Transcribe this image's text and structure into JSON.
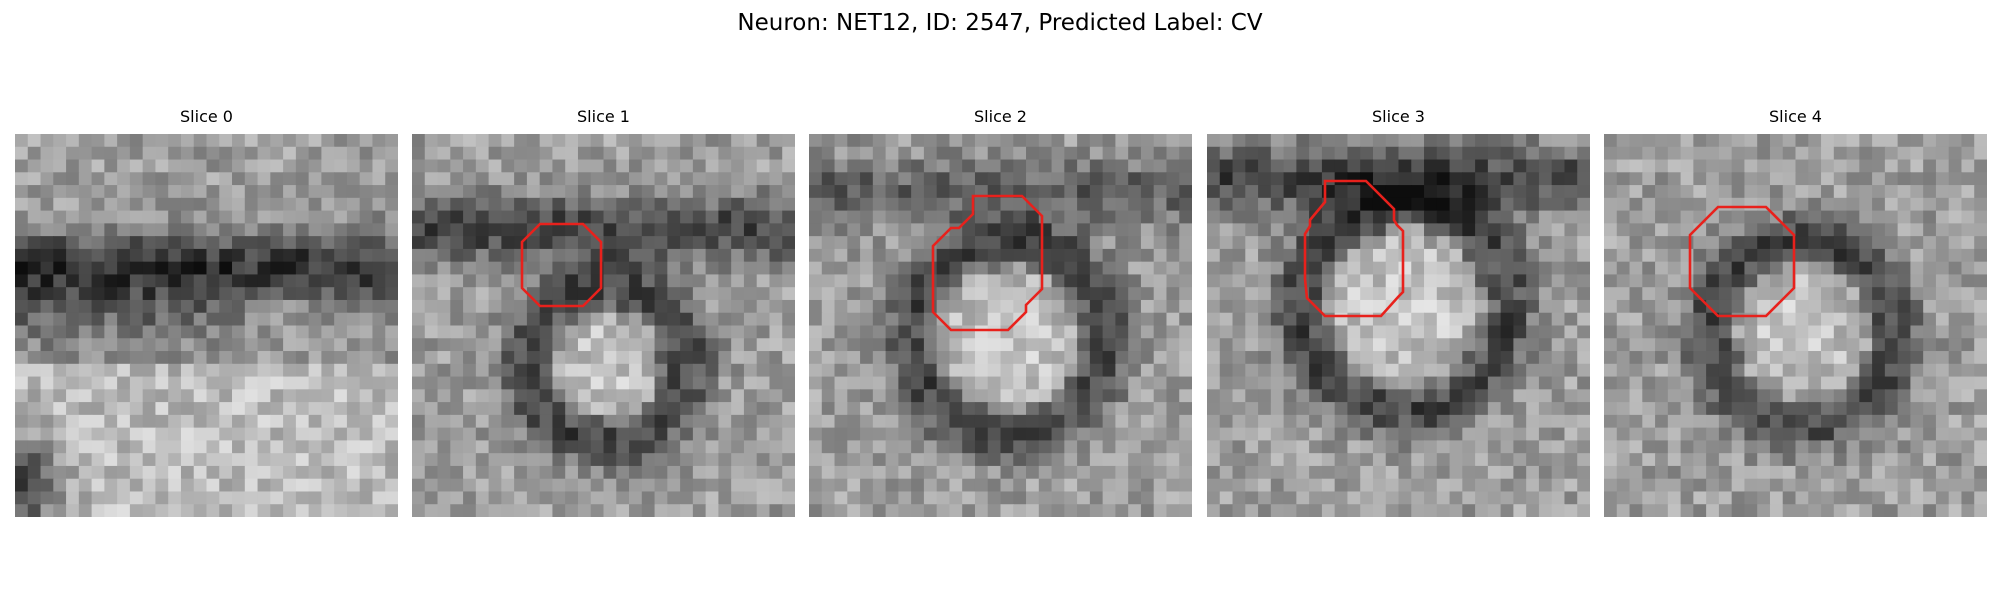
{
  "figure": {
    "title": "Neuron: NET12, ID: 2547, Predicted Label: CV"
  },
  "colors": {
    "contour": "#e8211c",
    "background": "#ffffff"
  },
  "panels": [
    {
      "title": "Slice 0",
      "has_contour": false,
      "shading": "dark-band-top-bright-bottom"
    },
    {
      "title": "Slice 1",
      "has_contour": true,
      "contour_shape": "octagon"
    },
    {
      "title": "Slice 2",
      "has_contour": true,
      "contour_shape": "octagon"
    },
    {
      "title": "Slice 3",
      "has_contour": true,
      "contour_shape": "octagon"
    },
    {
      "title": "Slice 4",
      "has_contour": true,
      "contour_shape": "octagon"
    }
  ]
}
